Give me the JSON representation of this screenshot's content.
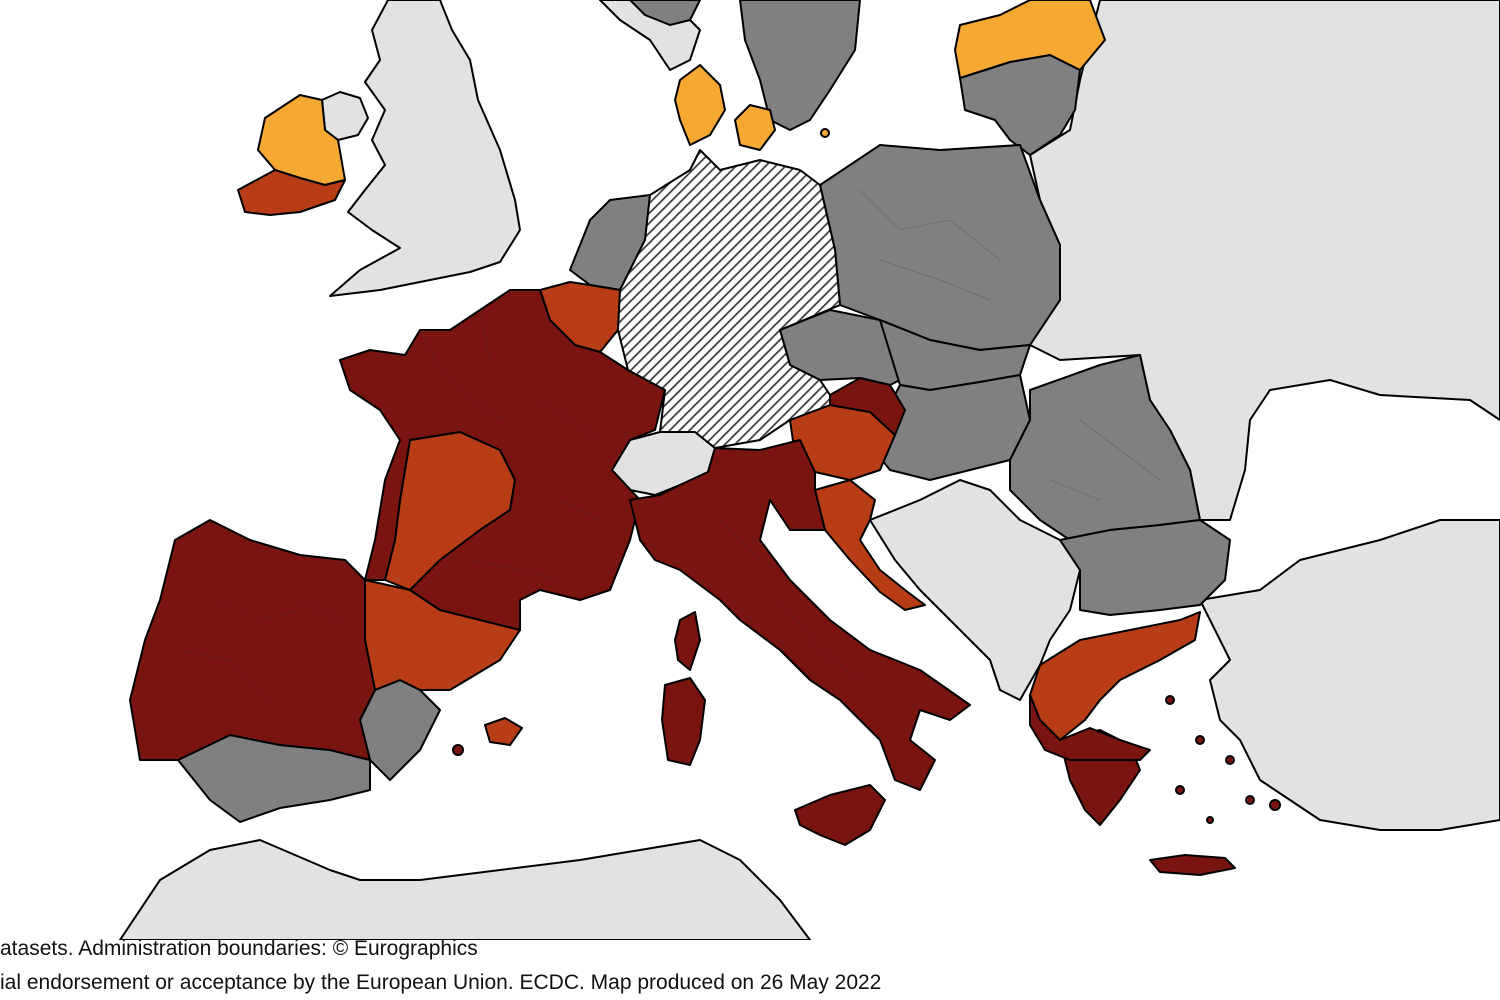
{
  "colors": {
    "sea": "#ffffff",
    "non_eu": "#e2e2e2",
    "no_data": "#808080",
    "orange": "#f5a832",
    "red": "#b83d17",
    "dark_red": "#7a1410",
    "hatched": "#3c3c3c"
  },
  "icons": {
    "hatch-pattern": "diagonal-lines"
  },
  "caption": {
    "line1": "atasets. Administration boundaries: © Eurographics",
    "line2": "ial endorsement or acceptance by the European Union. ECDC. Map produced on 26 May 2022"
  }
}
